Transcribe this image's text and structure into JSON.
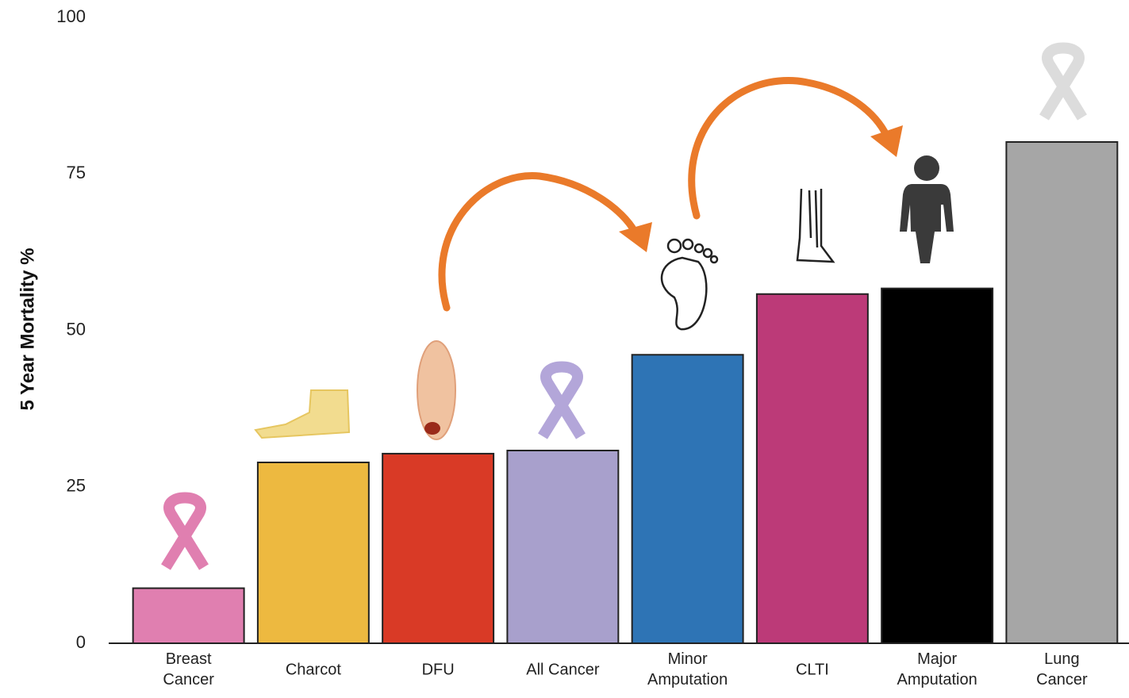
{
  "chart_data": {
    "type": "bar",
    "y_label": "5 Year Mortality %",
    "categories": [
      "Breast\nCancer",
      "Charcot",
      "DFU",
      "All Cancer",
      "Minor\nAmputation",
      "CLTI",
      "Major\nAmputation",
      "Lung\nCancer"
    ],
    "values": [
      8.8,
      28.9,
      30.3,
      30.8,
      46.1,
      55.8,
      56.7,
      80.1
    ],
    "colors": [
      "#e07fb0",
      "#edb940",
      "#d93a26",
      "#a8a0cc",
      "#2e74b5",
      "#bc3a78",
      "#000000",
      "#a6a6a6"
    ],
    "ylim": [
      0,
      100
    ],
    "yticks": [
      0,
      25,
      50,
      75,
      100
    ]
  }
}
